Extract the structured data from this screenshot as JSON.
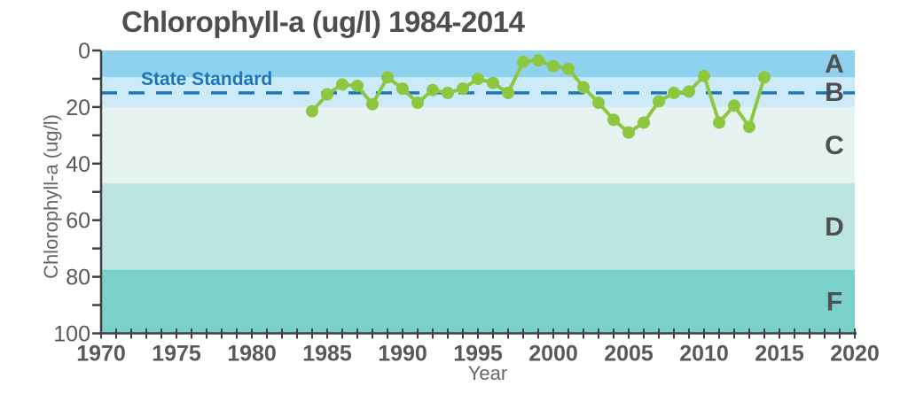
{
  "page": {
    "title": "Chlorophyll-a (ug/l) 1984-2014"
  },
  "chart_data": {
    "type": "line",
    "title": "Chlorophyll-a (ug/l) 1984-2014",
    "xlabel": "Year",
    "ylabel": "Chlorophyll-a (ug/l)",
    "xlim": [
      1970,
      2020
    ],
    "ylim": [
      0,
      100
    ],
    "y_axis_inverted_downward": true,
    "grid": false,
    "x_major_ticks": [
      1970,
      1975,
      1980,
      1985,
      1990,
      1995,
      2000,
      2005,
      2010,
      2015,
      2020
    ],
    "x_minor_tick_interval": 1,
    "y_major_ticks": [
      0,
      20,
      40,
      60,
      80,
      100
    ],
    "y_minor_tick_interval": 10,
    "series": [
      {
        "name": "Chlorophyll-a (ug/l)",
        "color": "#8dc63f",
        "x": [
          1984,
          1985,
          1986,
          1987,
          1988,
          1989,
          1990,
          1991,
          1992,
          1993,
          1994,
          1995,
          1996,
          1997,
          1998,
          1999,
          2000,
          2001,
          2002,
          2003,
          2004,
          2005,
          2006,
          2007,
          2008,
          2009,
          2010,
          2011,
          2012,
          2013,
          2014
        ],
        "y": [
          21.5,
          15.5,
          12,
          12.5,
          19,
          9.5,
          13.5,
          18.5,
          14,
          15,
          13.5,
          10,
          11.5,
          15,
          4,
          3.5,
          5.5,
          6.5,
          13,
          18.5,
          24.5,
          29,
          25.5,
          18,
          15,
          14.5,
          9,
          25.5,
          19.5,
          27,
          9.5
        ]
      }
    ],
    "reference_line": {
      "label": "State Standard",
      "value": 15,
      "color": "#1b75bb",
      "style": "dashed"
    },
    "grade_bands": [
      {
        "label": "A",
        "from": 0,
        "to": 9.5,
        "color": "#8fd2f0"
      },
      {
        "label": "B",
        "from": 9.5,
        "to": 20,
        "color": "#cdeaf8"
      },
      {
        "label": "C",
        "from": 20,
        "to": 47,
        "color": "#e6f3f1"
      },
      {
        "label": "D",
        "from": 47,
        "to": 77.5,
        "color": "#bce4e0"
      },
      {
        "label": "F",
        "from": 77.5,
        "to": 100,
        "color": "#79d1c9"
      }
    ],
    "style_colors": {
      "axis": "#414042",
      "tick_text": "#58595b",
      "title_text": "#4d4e50",
      "grade_text": "#4f5052",
      "secondary_text": "#666769"
    }
  }
}
